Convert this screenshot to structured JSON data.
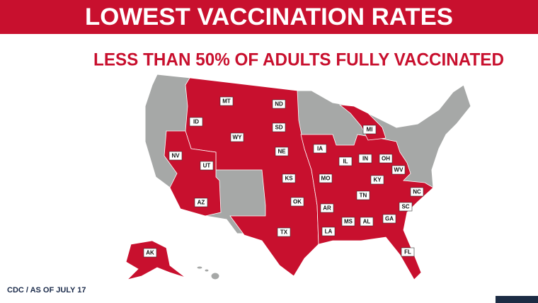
{
  "header": {
    "title": "LOWEST VACCINATION RATES",
    "subtitle": "LESS THAN 50% OF ADULTS FULLY VACCINATED"
  },
  "states": [
    "MT",
    "ND",
    "ID",
    "WY",
    "SD",
    "MI",
    "NV",
    "UT",
    "NE",
    "IA",
    "IN",
    "OH",
    "IL",
    "WV",
    "KS",
    "MO",
    "KY",
    "NC",
    "TN",
    "AZ",
    "OK",
    "AR",
    "SC",
    "MS",
    "AL",
    "GA",
    "TX",
    "LA",
    "FL",
    "AK"
  ],
  "footer": {
    "source": "CDC / AS OF JULY 17"
  }
}
